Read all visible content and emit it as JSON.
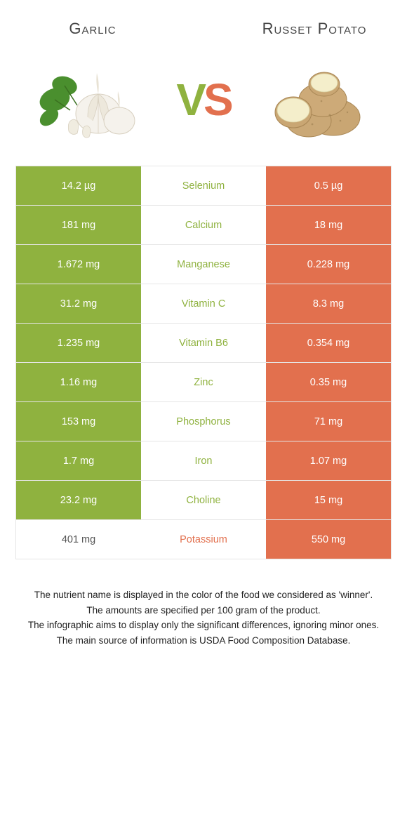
{
  "colors": {
    "left_food": "#8fb23f",
    "right_food": "#e2704e",
    "inactive": "#ffffff",
    "row_border": "#e6e6e6",
    "text_dark": "#444444"
  },
  "left_food": {
    "name": "Garlic"
  },
  "right_food": {
    "name": "Russet Potato"
  },
  "vs": {
    "v": "V",
    "s": "S"
  },
  "nutrients": [
    {
      "name": "Selenium",
      "left": "14.2 µg",
      "right": "0.5 µg",
      "winner": "left"
    },
    {
      "name": "Calcium",
      "left": "181 mg",
      "right": "18 mg",
      "winner": "left"
    },
    {
      "name": "Manganese",
      "left": "1.672 mg",
      "right": "0.228 mg",
      "winner": "left"
    },
    {
      "name": "Vitamin C",
      "left": "31.2 mg",
      "right": "8.3 mg",
      "winner": "left"
    },
    {
      "name": "Vitamin B6",
      "left": "1.235 mg",
      "right": "0.354 mg",
      "winner": "left"
    },
    {
      "name": "Zinc",
      "left": "1.16 mg",
      "right": "0.35 mg",
      "winner": "left"
    },
    {
      "name": "Phosphorus",
      "left": "153 mg",
      "right": "71 mg",
      "winner": "left"
    },
    {
      "name": "Iron",
      "left": "1.7 mg",
      "right": "1.07 mg",
      "winner": "left"
    },
    {
      "name": "Choline",
      "left": "23.2 mg",
      "right": "15 mg",
      "winner": "left"
    },
    {
      "name": "Potassium",
      "left": "401 mg",
      "right": "550 mg",
      "winner": "right"
    }
  ],
  "footnote": {
    "line1": "The nutrient name is displayed in the color of the food we considered as 'winner'.",
    "line2": "The amounts are specified per 100 gram of the product.",
    "line3": "The infographic aims to display only the significant differences, ignoring minor ones.",
    "line4": "The main source of information is USDA Food Composition Database."
  }
}
